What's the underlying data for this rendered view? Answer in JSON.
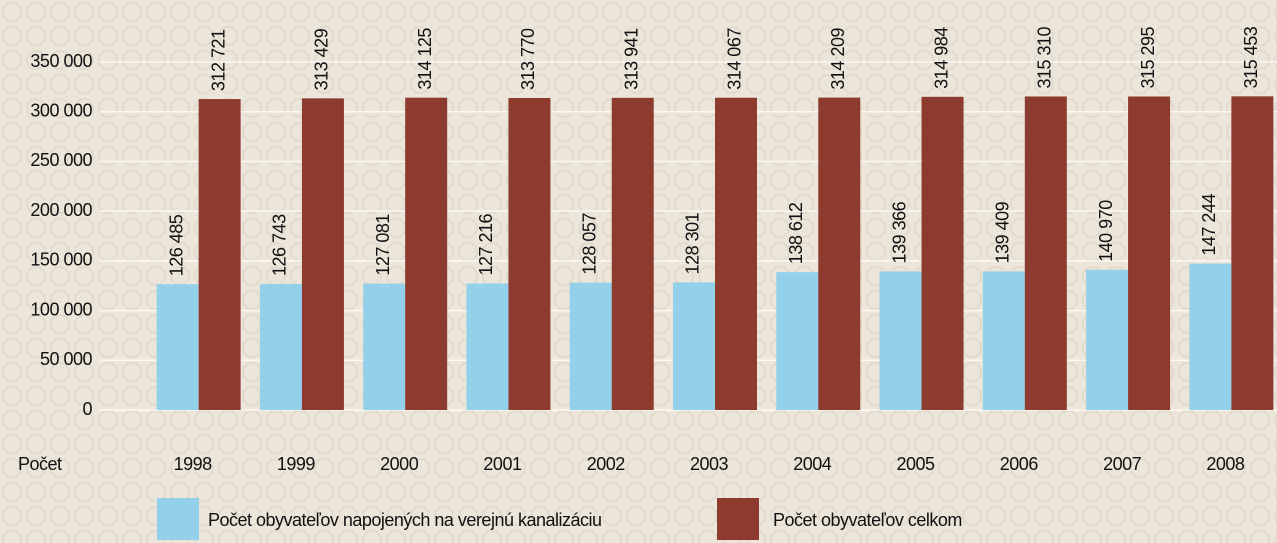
{
  "chart_data": {
    "type": "bar",
    "x_label": "Počet",
    "categories": [
      "1998",
      "1999",
      "2000",
      "2001",
      "2002",
      "2003",
      "2004",
      "2005",
      "2006",
      "2007",
      "2008"
    ],
    "series": [
      {
        "name": "Počet obyvateľov napojených na verejnú kanalizáciu",
        "color": "#93d0ea",
        "values": [
          126485,
          126743,
          127081,
          127216,
          128057,
          128301,
          138612,
          139366,
          139409,
          140970,
          147244
        ],
        "value_labels": [
          "126 485",
          "126 743",
          "127 081",
          "127 216",
          "128 057",
          "128 301",
          "138 612",
          "139 366",
          "139 409",
          "140 970",
          "147 244"
        ]
      },
      {
        "name": "Počet obyvateľov celkom",
        "color": "#8e3b2f",
        "values": [
          312721,
          313429,
          314125,
          313770,
          313941,
          314067,
          314209,
          314984,
          315310,
          315295,
          315453
        ],
        "value_labels": [
          "312 721",
          "313 429",
          "314 125",
          "313 770",
          "313 941",
          "314 067",
          "314 209",
          "314 984",
          "315 310",
          "315 295",
          "315 453"
        ]
      }
    ],
    "ylim": [
      0,
      350000
    ],
    "yticks": [
      {
        "value": 0,
        "label": "0"
      },
      {
        "value": 50000,
        "label": "50 000"
      },
      {
        "value": 100000,
        "label": "100 000"
      },
      {
        "value": 150000,
        "label": "150 000"
      },
      {
        "value": 200000,
        "label": "200 000"
      },
      {
        "value": 250000,
        "label": "250 000"
      },
      {
        "value": 300000,
        "label": "300 000"
      },
      {
        "value": 350000,
        "label": "350 000"
      }
    ],
    "grid": true
  }
}
